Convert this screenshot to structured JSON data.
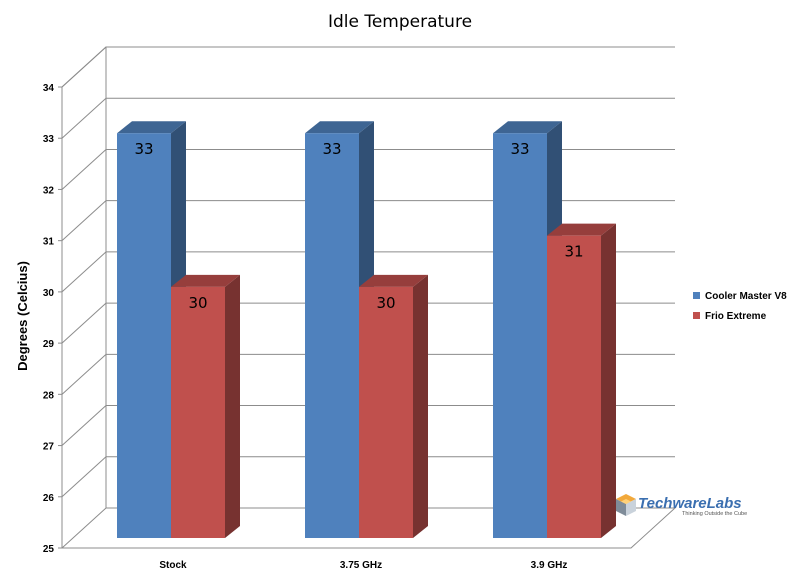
{
  "chart_data": {
    "type": "bar",
    "title": "Idle Temperature",
    "xlabel": "",
    "ylabel": "Degrees (Celcius)",
    "categories": [
      "Stock",
      "3.75 GHz",
      "3.9 GHz"
    ],
    "ylim": [
      25,
      34
    ],
    "yticks": [
      25,
      26,
      27,
      28,
      29,
      30,
      31,
      32,
      33,
      34
    ],
    "series": [
      {
        "name": "Cooler Master V8",
        "values": [
          33,
          33,
          33
        ],
        "color": "#4f81bd"
      },
      {
        "name": "Frio Extreme",
        "values": [
          30,
          30,
          31
        ],
        "color": "#c0504d"
      }
    ],
    "style": "3d-clustered-column",
    "grid": true,
    "legend_position": "right",
    "data_labels": true
  },
  "watermark": {
    "brand": "TechwareLabs",
    "tagline": "Thinking Outside the Cube",
    "icon": "cube-logo-icon"
  }
}
